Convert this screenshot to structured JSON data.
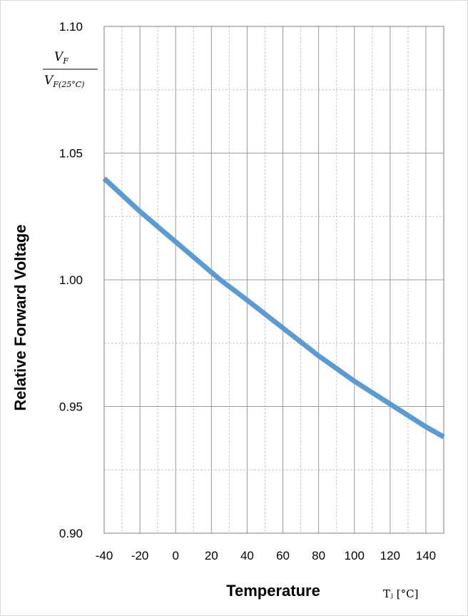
{
  "chart_data": {
    "type": "line",
    "title": "",
    "ylabel": "Relative Forward Voltage",
    "ylabel_fraction": {
      "numerator": "V",
      "numerator_sub": "F",
      "denominator": "V",
      "denominator_sub": "F(25°C)"
    },
    "xlabel": "Temperature",
    "xunit": "Tⱼ [°C]",
    "xlim": [
      -40,
      150
    ],
    "ylim": [
      0.9,
      1.1
    ],
    "x_ticks": [
      "-40",
      "-20",
      "0",
      "20",
      "40",
      "60",
      "80",
      "100",
      "120",
      "140"
    ],
    "y_ticks": [
      "0.90",
      "0.95",
      "1.00",
      "1.05",
      "1.10"
    ],
    "grid": true,
    "series": [
      {
        "color": "#5b9bd5",
        "x": [
          -40,
          -20,
          0,
          20,
          25,
          40,
          60,
          80,
          100,
          120,
          140,
          150
        ],
        "y": [
          1.04,
          1.027,
          1.015,
          1.003,
          1.0,
          0.992,
          0.981,
          0.97,
          0.96,
          0.951,
          0.942,
          0.938
        ]
      }
    ]
  }
}
